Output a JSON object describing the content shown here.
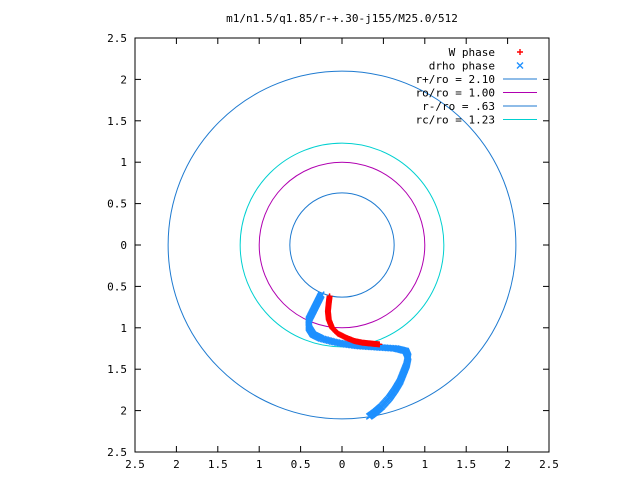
{
  "chart_data": {
    "type": "scatter",
    "title": "m1/n1.5/q1.85/r-+.30-j155/M25.0/512",
    "xlim": [
      -2.5,
      2.5
    ],
    "ylim": [
      -2.5,
      2.5
    ],
    "x_tick_labels": [
      "2.5",
      "2",
      "1.5",
      "1",
      "0.5",
      "0",
      "0.5",
      "1",
      "1.5",
      "2",
      "2.5"
    ],
    "y_tick_labels": [
      "2.5",
      "2",
      "1.5",
      "1",
      "0.5",
      "0",
      "0.5",
      "1",
      "1.5",
      "2",
      "2.5"
    ],
    "grid": false,
    "legend_position": "top-right",
    "legend": [
      {
        "label": "W phase",
        "kind": "plus",
        "color": "#ff0000"
      },
      {
        "label": "drho phase",
        "kind": "cross",
        "color": "#1e90ff"
      },
      {
        "label": "r+/ro = 2.10",
        "kind": "line",
        "color": "#1e7ad0"
      },
      {
        "label": "ro/ro = 1.00",
        "kind": "line",
        "color": "#b000b0"
      },
      {
        "label": "r-/ro = .63",
        "kind": "line",
        "color": "#1e7ad0"
      },
      {
        "label": "rc/ro = 1.23",
        "kind": "line",
        "color": "#00d0d0"
      }
    ],
    "circles": [
      {
        "name": "r+/ro",
        "radius": 2.1,
        "color": "#1e7ad0"
      },
      {
        "name": "ro/ro",
        "radius": 1.0,
        "color": "#b000b0"
      },
      {
        "name": "r-/ro",
        "radius": 0.63,
        "color": "#1e7ad0"
      },
      {
        "name": "rc/ro",
        "radius": 1.23,
        "color": "#00d0d0"
      }
    ],
    "series": [
      {
        "name": "drho phase",
        "marker": "cross",
        "color": "#1e90ff",
        "points": [
          [
            -0.25,
            0.6
          ],
          [
            -0.3,
            0.7
          ],
          [
            -0.35,
            0.8
          ],
          [
            -0.4,
            0.9
          ],
          [
            -0.4,
            1.0
          ],
          [
            -0.35,
            1.08
          ],
          [
            -0.25,
            1.13
          ],
          [
            -0.1,
            1.17
          ],
          [
            0.05,
            1.2
          ],
          [
            0.2,
            1.22
          ],
          [
            0.35,
            1.23
          ],
          [
            0.5,
            1.24
          ],
          [
            0.65,
            1.25
          ],
          [
            0.77,
            1.28
          ],
          [
            0.8,
            1.35
          ],
          [
            0.78,
            1.45
          ],
          [
            0.74,
            1.55
          ],
          [
            0.7,
            1.65
          ],
          [
            0.64,
            1.75
          ],
          [
            0.57,
            1.85
          ],
          [
            0.48,
            1.95
          ],
          [
            0.4,
            2.02
          ],
          [
            0.33,
            2.07
          ]
        ]
      },
      {
        "name": "W phase",
        "marker": "plus",
        "color": "#ff0000",
        "points": [
          [
            -0.15,
            0.62
          ],
          [
            -0.16,
            0.7
          ],
          [
            -0.17,
            0.8
          ],
          [
            -0.16,
            0.9
          ],
          [
            -0.12,
            1.0
          ],
          [
            -0.05,
            1.07
          ],
          [
            0.05,
            1.12
          ],
          [
            0.15,
            1.16
          ],
          [
            0.25,
            1.18
          ],
          [
            0.35,
            1.19
          ],
          [
            0.45,
            1.2
          ]
        ]
      }
    ]
  }
}
